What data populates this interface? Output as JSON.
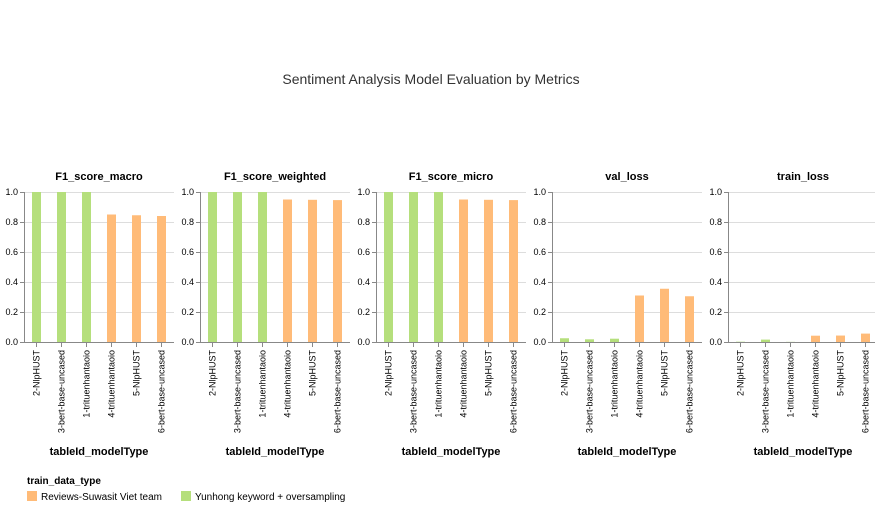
{
  "chart_data": {
    "type": "bar",
    "title": "Sentiment Analysis Model Evaluation by Metrics",
    "xlabel": "tableId_modelType",
    "ylim": [
      0,
      1
    ],
    "yticks": [
      "0.0",
      "0.2",
      "0.4",
      "0.6",
      "0.8",
      "1.0"
    ],
    "grid": true,
    "legend_position": "bottom-left",
    "legend": {
      "title": "train_data_type",
      "entries": [
        {
          "label": "Reviews-Suwasit Viet team",
          "color": "#ffbb78"
        },
        {
          "label": "Yunhong keyword + oversampling",
          "color": "#b5df7c"
        }
      ]
    },
    "categories": [
      "2-NlpHUST",
      "3-bert-base-uncased",
      "1-trituenhantaoio",
      "4-trituenhantaoio",
      "5-NlpHUST",
      "6-bert-base-uncased"
    ],
    "category_group": [
      1,
      1,
      1,
      0,
      0,
      0
    ],
    "panels": [
      {
        "title": "F1_score_macro",
        "values": [
          1.0,
          1.0,
          1.0,
          0.85,
          0.845,
          0.84
        ]
      },
      {
        "title": "F1_score_weighted",
        "values": [
          1.0,
          1.0,
          1.0,
          0.95,
          0.948,
          0.946
        ]
      },
      {
        "title": "F1_score_micro",
        "values": [
          1.0,
          1.0,
          1.0,
          0.95,
          0.948,
          0.946
        ]
      },
      {
        "title": "val_loss",
        "values": [
          0.025,
          0.018,
          0.022,
          0.31,
          0.355,
          0.305
        ]
      },
      {
        "title": "train_loss",
        "values": [
          0.002,
          0.016,
          0.001,
          0.042,
          0.043,
          0.056
        ]
      }
    ]
  }
}
